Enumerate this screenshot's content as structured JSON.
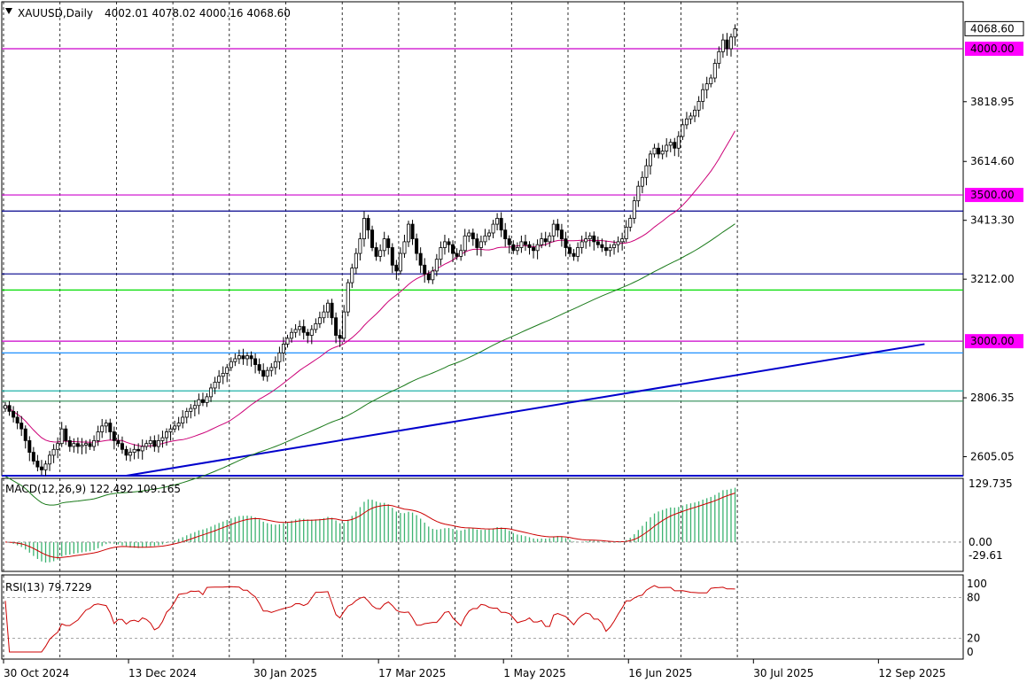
{
  "chart_data": [
    {
      "type": "candlestick",
      "title": "XAUUSD,Daily",
      "symbol": "XAUUSD",
      "timeframe": "Daily",
      "ohlc_header": "4002.01 4078.02 4000.16 4068.60",
      "last_price_label": "4068.60",
      "y_ticks": [
        "3818.95",
        "3614.60",
        "3413.30",
        "3212.00",
        "2806.35",
        "2605.05"
      ],
      "ylim": [
        2540,
        4100
      ],
      "price_level_labels": [
        {
          "text": "4000.00",
          "value": 4000,
          "color": "#ff00ff"
        },
        {
          "text": "3500.00",
          "value": 3500,
          "color": "#ff00ff"
        },
        {
          "text": "3000.00",
          "value": 3000,
          "color": "#ff00ff"
        }
      ],
      "horizontal_levels": [
        {
          "value": 4000,
          "color": "#cc00cc"
        },
        {
          "value": 3500,
          "color": "#cc00cc"
        },
        {
          "value": 3000,
          "color": "#cc00cc"
        },
        {
          "value": 3445,
          "color": "#00008b"
        },
        {
          "value": 3230,
          "color": "#00008b"
        },
        {
          "value": 3175,
          "color": "#00dd00"
        },
        {
          "value": 2960,
          "color": "#1e90ff"
        },
        {
          "value": 2830,
          "color": "#20b2aa"
        },
        {
          "value": 2795,
          "color": "#2e8b57"
        },
        {
          "value": 2540,
          "color": "#0000cd"
        }
      ],
      "x_dates": [
        "30 Oct 2024",
        "13 Dec 2024",
        "30 Jan 2025",
        "17 Mar 2025",
        "1 May 2025",
        "16 Jun 2025",
        "30 Jul 2025",
        "12 Sep 2025"
      ],
      "x_date_positions": [
        0,
        31,
        62,
        93,
        124,
        155,
        186,
        217
      ],
      "closes": [
        2780,
        2760,
        2740,
        2720,
        2700,
        2660,
        2620,
        2590,
        2570,
        2560,
        2580,
        2610,
        2630,
        2650,
        2700,
        2660,
        2640,
        2650,
        2640,
        2645,
        2650,
        2640,
        2660,
        2690,
        2710,
        2720,
        2690,
        2660,
        2650,
        2630,
        2610,
        2620,
        2630,
        2625,
        2640,
        2650,
        2660,
        2640,
        2660,
        2670,
        2690,
        2700,
        2710,
        2720,
        2740,
        2760,
        2770,
        2780,
        2800,
        2790,
        2810,
        2840,
        2860,
        2880,
        2890,
        2910,
        2930,
        2940,
        2950,
        2940,
        2950,
        2940,
        2920,
        2900,
        2880,
        2900,
        2910,
        2930,
        2960,
        2990,
        3010,
        3030,
        3040,
        3050,
        3030,
        3020,
        3040,
        3060,
        3080,
        3100,
        3130,
        3080,
        3020,
        3010,
        3100,
        3200,
        3250,
        3300,
        3350,
        3420,
        3380,
        3320,
        3290,
        3310,
        3350,
        3320,
        3260,
        3240,
        3300,
        3340,
        3400,
        3350,
        3300,
        3260,
        3230,
        3210,
        3240,
        3280,
        3320,
        3340,
        3330,
        3300,
        3290,
        3310,
        3360,
        3370,
        3350,
        3320,
        3340,
        3360,
        3370,
        3400,
        3420,
        3380,
        3350,
        3330,
        3310,
        3320,
        3340,
        3330,
        3320,
        3310,
        3330,
        3350,
        3340,
        3360,
        3400,
        3380,
        3350,
        3320,
        3300,
        3290,
        3320,
        3340,
        3350,
        3360,
        3340,
        3330,
        3320,
        3310,
        3320,
        3330,
        3340,
        3350,
        3390,
        3420,
        3480,
        3530,
        3560,
        3600,
        3640,
        3660,
        3640,
        3650,
        3670,
        3680,
        3660,
        3700,
        3740,
        3760,
        3770,
        3790,
        3820,
        3860,
        3880,
        3900,
        3950,
        3990,
        4030,
        4000,
        4040,
        4068.6
      ],
      "moving_averages": [
        {
          "color": "#cc0077",
          "values_note": "50-day"
        },
        {
          "color": "#1a7a1a",
          "values_note": "200-day"
        }
      ],
      "trendline_color": "#0000cc"
    },
    {
      "type": "bar+line",
      "title": "MACD(12,26,9) 122.492 109.165",
      "indicator": "MACD(12,26,9)",
      "values_text": "122.492 109.165",
      "y_ticks": [
        "129.735",
        "0.00",
        "-29.61"
      ],
      "ylim": [
        -29.61,
        129.735
      ],
      "histogram_color": "#3cb371",
      "signal_color": "#cc0000"
    },
    {
      "type": "line",
      "title": "RSI(13) 79.7229",
      "indicator": "RSI(13)",
      "values_text": "79.7229",
      "y_ticks": [
        "100",
        "80",
        "20",
        "0"
      ],
      "ylim": [
        0,
        100
      ],
      "line_color": "#cc0000"
    }
  ],
  "ui": {
    "dropdown_icon": "triangle-down-icon"
  }
}
